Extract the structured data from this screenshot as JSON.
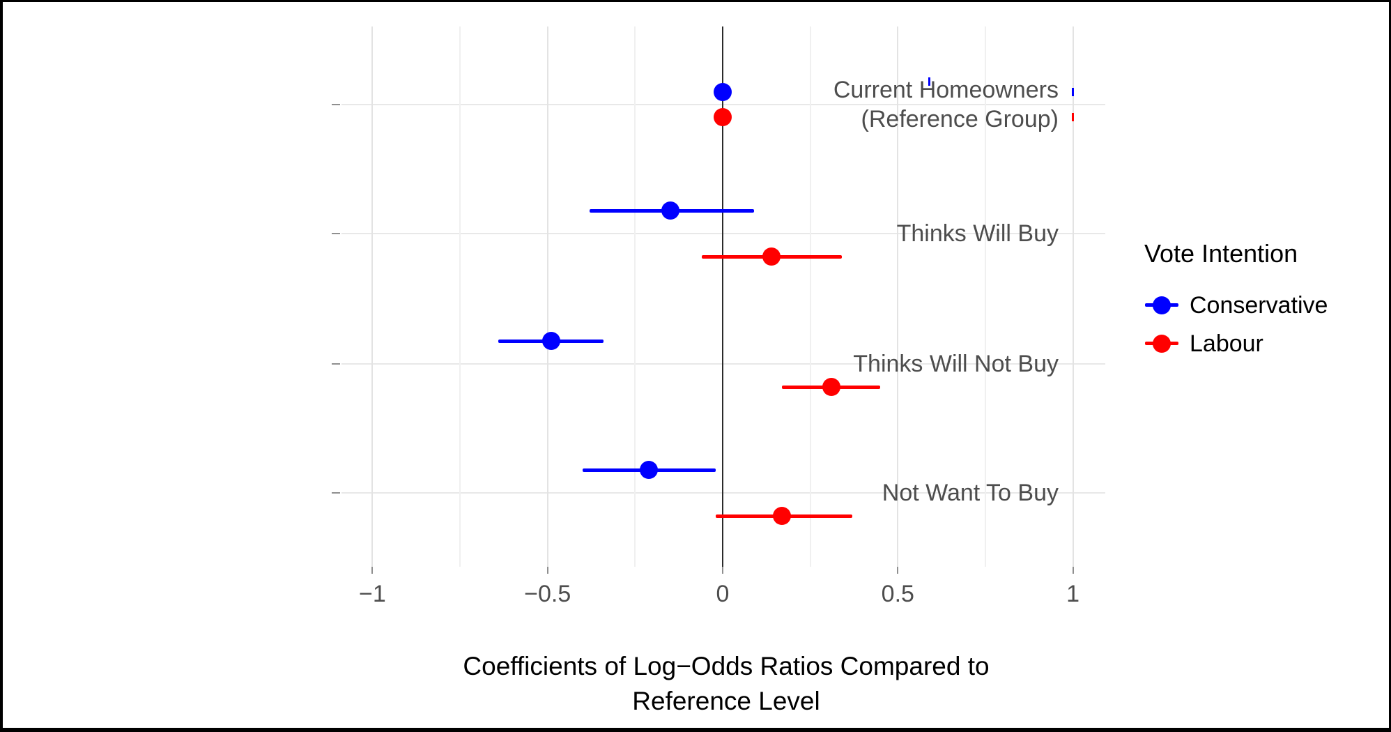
{
  "chart_data": {
    "type": "scatter",
    "subtype": "dot-and-whisker coefficient plot (points with 95% CI error bars, dodged by group)",
    "title": "",
    "xlabel_lines": [
      "Coefficients of Log−Odds Ratios Compared to",
      "Reference Level"
    ],
    "ylabel": "",
    "xlim": [
      -1.09,
      1.09
    ],
    "grid": "light gray major+minor vertical gridlines, major horizontal gridlines, white background",
    "zero_reference_line": 0,
    "x_tick_labels": [
      "−1",
      "−0.5",
      "0",
      "0.5",
      "1"
    ],
    "x_tick_values": [
      -1,
      -0.5,
      0,
      0.5,
      1
    ],
    "categories": [
      {
        "lines": [
          "Current Homeowners",
          "(Reference Group)"
        ],
        "name": "Current Homeowners (Reference Group)"
      },
      {
        "lines": [
          "Thinks Will Buy"
        ],
        "name": "Thinks Will Buy"
      },
      {
        "lines": [
          "Thinks Will Not Buy"
        ],
        "name": "Thinks Will Not Buy"
      },
      {
        "lines": [
          "Not Want To Buy"
        ],
        "name": "Not Want To Buy"
      }
    ],
    "legend": {
      "title": "Vote Intention",
      "position": "right",
      "entries": [
        {
          "label": "Conservative",
          "color": "#0000ff"
        },
        {
          "label": "Labour",
          "color": "#ff0000"
        }
      ]
    },
    "series": [
      {
        "name": "Conservative",
        "color": "#0000ff",
        "points": [
          {
            "category": "Current Homeowners (Reference Group)",
            "estimate": 0.0,
            "ci_low": 0.0,
            "ci_high": 0.0
          },
          {
            "category": "Thinks Will Buy",
            "estimate": -0.15,
            "ci_low": -0.38,
            "ci_high": 0.09
          },
          {
            "category": "Thinks Will Not Buy",
            "estimate": -0.49,
            "ci_low": -0.64,
            "ci_high": -0.34
          },
          {
            "category": "Not Want To Buy",
            "estimate": -0.21,
            "ci_low": -0.4,
            "ci_high": -0.02
          }
        ]
      },
      {
        "name": "Labour",
        "color": "#ff0000",
        "points": [
          {
            "category": "Current Homeowners (Reference Group)",
            "estimate": 0.0,
            "ci_low": 0.0,
            "ci_high": 0.0
          },
          {
            "category": "Thinks Will Buy",
            "estimate": 0.14,
            "ci_low": -0.06,
            "ci_high": 0.34
          },
          {
            "category": "Thinks Will Not Buy",
            "estimate": 0.31,
            "ci_low": 0.17,
            "ci_high": 0.45
          },
          {
            "category": "Not Want To Buy",
            "estimate": 0.17,
            "ci_low": -0.02,
            "ci_high": 0.37
          }
        ]
      }
    ],
    "clipped_tick_artifacts": [
      {
        "series": "Conservative",
        "x": 0.59,
        "near_category": "Current Homeowners (Reference Group)"
      },
      {
        "series": "Conservative",
        "x": 1.0,
        "near_category": "Current Homeowners (Reference Group)"
      },
      {
        "series": "Labour",
        "x": 1.0,
        "near_category": "Current Homeowners (Reference Group)"
      }
    ]
  }
}
